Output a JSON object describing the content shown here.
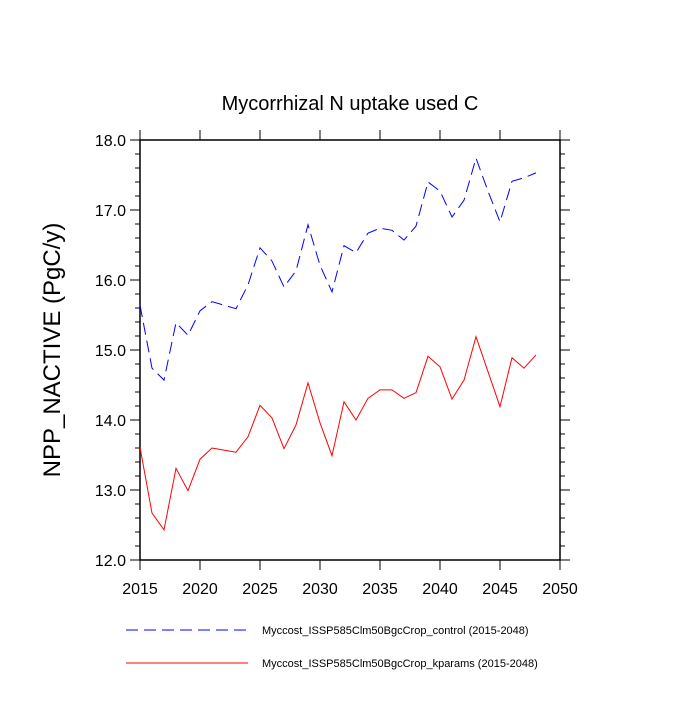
{
  "chart_data": {
    "type": "line",
    "title": "Mycorrhizal N uptake used C",
    "xlabel": "",
    "ylabel": "NPP_NACTIVE  (PgC/y)",
    "xlim": [
      2015,
      2050
    ],
    "ylim": [
      12.0,
      18.0
    ],
    "xticks": [
      "2015",
      "2020",
      "2025",
      "2030",
      "2035",
      "2040",
      "2045",
      "2050"
    ],
    "yticks": [
      "12.0",
      "13.0",
      "14.0",
      "15.0",
      "16.0",
      "17.0",
      "18.0"
    ],
    "grid": false,
    "legend_position": "bottom",
    "x": [
      2015,
      2016,
      2017,
      2018,
      2019,
      2020,
      2021,
      2022,
      2023,
      2024,
      2025,
      2026,
      2027,
      2028,
      2029,
      2030,
      2031,
      2032,
      2033,
      2034,
      2035,
      2036,
      2037,
      2038,
      2039,
      2040,
      2041,
      2042,
      2043,
      2044,
      2045,
      2046,
      2047,
      2048
    ],
    "series": [
      {
        "name": "Myccost_ISSP585Clm50BgcCrop_control (2015-2048)",
        "color": "#0000ff",
        "dash": "dashed",
        "values": [
          15.64,
          14.74,
          14.57,
          15.39,
          15.21,
          15.56,
          15.69,
          15.64,
          15.59,
          15.93,
          16.46,
          16.27,
          15.9,
          16.13,
          16.79,
          16.21,
          15.83,
          16.49,
          16.39,
          16.67,
          16.74,
          16.71,
          16.57,
          16.77,
          17.4,
          17.27,
          16.9,
          17.14,
          17.74,
          17.27,
          16.83,
          17.41,
          17.46,
          17.53
        ]
      },
      {
        "name": "Myccost_ISSP585Clm50BgcCrop_kparams (2015-2048)",
        "color": "#ff0000",
        "dash": "solid",
        "values": [
          13.61,
          12.67,
          12.43,
          13.31,
          12.99,
          13.44,
          13.6,
          13.57,
          13.54,
          13.76,
          14.21,
          14.03,
          13.59,
          13.93,
          14.53,
          13.96,
          13.49,
          14.26,
          14.0,
          14.31,
          14.43,
          14.43,
          14.31,
          14.39,
          14.91,
          14.76,
          14.3,
          14.57,
          15.19,
          14.69,
          14.19,
          14.89,
          14.74,
          14.93
        ]
      }
    ]
  }
}
